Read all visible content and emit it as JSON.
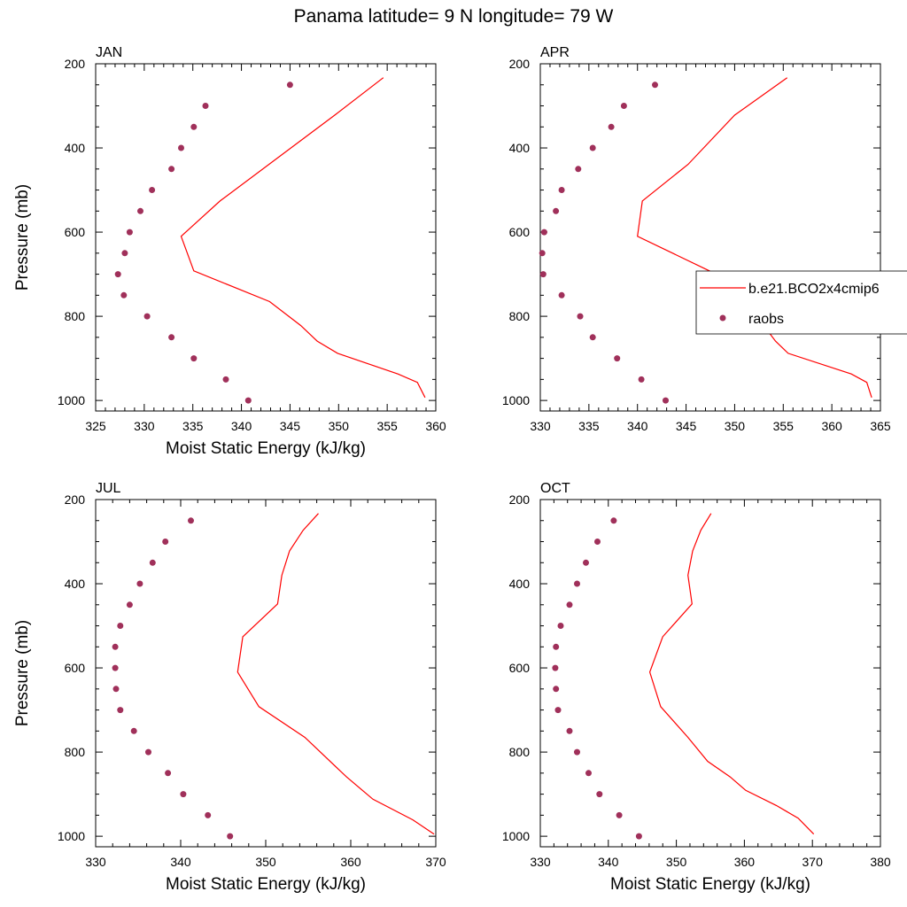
{
  "figure": {
    "title": "Panama  latitude= 9 N longitude= 79 W"
  },
  "colors": {
    "model_line": "#ff0000",
    "obs_marker": "#a0305a"
  },
  "legend": {
    "placement": "inside top panel APR, right edge",
    "entries": [
      {
        "label": "b.e21.BCO2x4cmip6",
        "symbol": "line"
      },
      {
        "label": "raobs",
        "symbol": "marker"
      }
    ]
  },
  "chart_data": [
    {
      "type": "line",
      "title": "JAN",
      "xlabel": "Moist Static Energy (kJ/kg)",
      "ylabel": "Pressure (mb)",
      "xlim": [
        325,
        360
      ],
      "xticks": [
        325,
        330,
        335,
        340,
        345,
        350,
        355,
        360
      ],
      "ylim": [
        200,
        1025
      ],
      "yticks": [
        200,
        400,
        600,
        800,
        1000
      ],
      "y_inverted": true,
      "grid": false,
      "series": [
        {
          "name": "b.e21.BCO2x4cmip6",
          "style": "line",
          "points": [
            [
              354.6,
              233
            ],
            [
              349.6,
              322
            ],
            [
              337.8,
              526
            ],
            [
              333.8,
              610
            ],
            [
              335.1,
              692
            ],
            [
              342.9,
              765
            ],
            [
              346.1,
              822
            ],
            [
              347.8,
              859
            ],
            [
              349.9,
              888
            ],
            [
              356.1,
              937
            ],
            [
              358.1,
              957
            ],
            [
              358.9,
              993
            ]
          ]
        },
        {
          "name": "raobs",
          "style": "marker",
          "points": [
            [
              345.0,
              250
            ],
            [
              336.3,
              300
            ],
            [
              335.1,
              350
            ],
            [
              333.8,
              400
            ],
            [
              332.8,
              450
            ],
            [
              330.8,
              500
            ],
            [
              329.6,
              550
            ],
            [
              328.5,
              600
            ],
            [
              328.0,
              650
            ],
            [
              327.3,
              700
            ],
            [
              327.9,
              750
            ],
            [
              330.3,
              800
            ],
            [
              332.8,
              850
            ],
            [
              335.1,
              900
            ],
            [
              338.4,
              950
            ],
            [
              340.7,
              1000
            ]
          ]
        }
      ]
    },
    {
      "type": "line",
      "title": "APR",
      "xlabel": "",
      "ylabel": "",
      "xlim": [
        330,
        365
      ],
      "xticks": [
        330,
        335,
        340,
        345,
        350,
        355,
        360,
        365
      ],
      "ylim": [
        200,
        1025
      ],
      "yticks": [
        200,
        400,
        600,
        800,
        1000
      ],
      "y_inverted": true,
      "grid": false,
      "series": [
        {
          "name": "b.e21.BCO2x4cmip6",
          "style": "line",
          "points": [
            [
              355.4,
              233
            ],
            [
              350.0,
              322
            ],
            [
              345.2,
              439
            ],
            [
              340.5,
              526
            ],
            [
              340.0,
              610
            ],
            [
              347.4,
              692
            ],
            [
              351.8,
              765
            ],
            [
              353.0,
              822
            ],
            [
              354.2,
              859
            ],
            [
              355.5,
              888
            ],
            [
              362.0,
              937
            ],
            [
              363.6,
              957
            ],
            [
              364.1,
              993
            ]
          ]
        },
        {
          "name": "raobs",
          "style": "marker",
          "points": [
            [
              341.8,
              250
            ],
            [
              338.6,
              300
            ],
            [
              337.3,
              350
            ],
            [
              335.4,
              400
            ],
            [
              333.9,
              450
            ],
            [
              332.2,
              500
            ],
            [
              331.6,
              550
            ],
            [
              330.4,
              600
            ],
            [
              330.2,
              650
            ],
            [
              330.3,
              700
            ],
            [
              332.2,
              750
            ],
            [
              334.1,
              800
            ],
            [
              335.4,
              850
            ],
            [
              337.9,
              900
            ],
            [
              340.4,
              950
            ],
            [
              342.9,
              1000
            ]
          ]
        }
      ]
    },
    {
      "type": "line",
      "title": "JUL",
      "xlabel": "Moist Static Energy (kJ/kg)",
      "ylabel": "Pressure (mb)",
      "xlim": [
        330,
        370
      ],
      "xticks": [
        330,
        340,
        350,
        360,
        370
      ],
      "ylim": [
        200,
        1025
      ],
      "yticks": [
        200,
        400,
        600,
        800,
        1000
      ],
      "y_inverted": true,
      "grid": false,
      "series": [
        {
          "name": "b.e21.BCO2x4cmip6",
          "style": "line",
          "points": [
            [
              356.2,
              233
            ],
            [
              354.4,
              273
            ],
            [
              352.8,
              322
            ],
            [
              351.9,
              380
            ],
            [
              351.4,
              448
            ],
            [
              347.3,
              526
            ],
            [
              346.7,
              610
            ],
            [
              349.2,
              692
            ],
            [
              354.6,
              765
            ],
            [
              359.5,
              859
            ],
            [
              362.6,
              912
            ],
            [
              367.3,
              961
            ],
            [
              369.8,
              995
            ]
          ]
        },
        {
          "name": "raobs",
          "style": "marker",
          "points": [
            [
              341.2,
              250
            ],
            [
              338.2,
              300
            ],
            [
              336.7,
              350
            ],
            [
              335.2,
              400
            ],
            [
              334.0,
              450
            ],
            [
              332.9,
              500
            ],
            [
              332.3,
              550
            ],
            [
              332.3,
              600
            ],
            [
              332.4,
              650
            ],
            [
              332.9,
              700
            ],
            [
              334.5,
              750
            ],
            [
              336.2,
              800
            ],
            [
              338.5,
              850
            ],
            [
              340.3,
              900
            ],
            [
              343.2,
              950
            ],
            [
              345.8,
              1000
            ]
          ]
        }
      ]
    },
    {
      "type": "line",
      "title": "OCT",
      "xlabel": "Moist Static Energy (kJ/kg)",
      "ylabel": "",
      "xlim": [
        330,
        380
      ],
      "xticks": [
        330,
        340,
        350,
        360,
        370,
        380
      ],
      "ylim": [
        200,
        1025
      ],
      "yticks": [
        200,
        400,
        600,
        800,
        1000
      ],
      "y_inverted": true,
      "grid": false,
      "series": [
        {
          "name": "b.e21.BCO2x4cmip6",
          "style": "line",
          "points": [
            [
              355.1,
              233
            ],
            [
              353.6,
              273
            ],
            [
              352.4,
              322
            ],
            [
              351.7,
              380
            ],
            [
              352.3,
              448
            ],
            [
              348.0,
              526
            ],
            [
              346.1,
              610
            ],
            [
              347.7,
              692
            ],
            [
              351.7,
              765
            ],
            [
              354.6,
              822
            ],
            [
              357.9,
              859
            ],
            [
              360.2,
              891
            ],
            [
              364.7,
              927
            ],
            [
              367.9,
              957
            ],
            [
              370.2,
              995
            ]
          ]
        },
        {
          "name": "raobs",
          "style": "marker",
          "points": [
            [
              340.8,
              250
            ],
            [
              338.4,
              300
            ],
            [
              336.7,
              350
            ],
            [
              335.4,
              400
            ],
            [
              334.3,
              450
            ],
            [
              333.0,
              500
            ],
            [
              332.3,
              550
            ],
            [
              332.2,
              600
            ],
            [
              332.3,
              650
            ],
            [
              332.6,
              700
            ],
            [
              334.3,
              750
            ],
            [
              335.4,
              800
            ],
            [
              337.1,
              850
            ],
            [
              338.7,
              900
            ],
            [
              341.6,
              950
            ],
            [
              344.5,
              1000
            ]
          ]
        }
      ]
    }
  ]
}
